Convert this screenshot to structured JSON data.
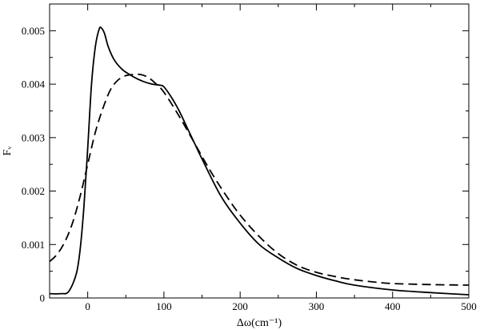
{
  "chart_data": {
    "type": "line",
    "title": "",
    "xlabel": "Δω(cm⁻¹)",
    "ylabel": "Fᵥ",
    "xlim": [
      -50,
      500
    ],
    "ylim": [
      0,
      0.0055
    ],
    "x_ticks": [
      0,
      100,
      200,
      300,
      400,
      500
    ],
    "x_tick_labels": [
      "0",
      "100",
      "200",
      "300",
      "400",
      "500"
    ],
    "y_ticks": [
      0,
      0.001,
      0.002,
      0.003,
      0.004,
      0.005
    ],
    "y_tick_labels": [
      "0",
      "0.001",
      "0.002",
      "0.003",
      "0.004",
      "0.005"
    ],
    "grid": false,
    "legend": "none",
    "series": [
      {
        "style": "solid",
        "color": "#000000",
        "x": [
          -50,
          -35,
          -25,
          -15,
          -10,
          -5,
          0,
          5,
          10,
          15,
          18,
          22,
          27,
          35,
          45,
          55,
          65,
          75,
          85,
          95,
          100,
          110,
          120,
          130,
          140,
          150,
          175,
          200,
          225,
          250,
          275,
          300,
          325,
          350,
          400,
          450,
          500
        ],
        "y": [
          8e-05,
          8e-05,
          0.00012,
          0.00045,
          0.0009,
          0.0017,
          0.0028,
          0.004,
          0.0047,
          0.00503,
          0.00505,
          0.00495,
          0.0047,
          0.00445,
          0.00428,
          0.00418,
          0.0041,
          0.00404,
          0.004,
          0.00398,
          0.00395,
          0.00375,
          0.0035,
          0.0032,
          0.0029,
          0.0026,
          0.0019,
          0.0014,
          0.001,
          0.00075,
          0.00055,
          0.00042,
          0.00032,
          0.00024,
          0.00015,
          0.0001,
          6e-05
        ]
      },
      {
        "style": "dashed",
        "color": "#000000",
        "x": [
          -50,
          -40,
          -30,
          -20,
          -10,
          0,
          10,
          20,
          30,
          40,
          50,
          60,
          70,
          80,
          90,
          100,
          120,
          140,
          160,
          180,
          200,
          225,
          250,
          275,
          300,
          325,
          350,
          375,
          400,
          450,
          500
        ],
        "y": [
          0.00068,
          0.00082,
          0.00105,
          0.0014,
          0.0019,
          0.0025,
          0.0031,
          0.00355,
          0.0039,
          0.00408,
          0.00416,
          0.00418,
          0.00418,
          0.00412,
          0.004,
          0.00385,
          0.0034,
          0.0029,
          0.0024,
          0.00195,
          0.00155,
          0.00115,
          0.00083,
          0.00061,
          0.00048,
          0.0004,
          0.00034,
          0.0003,
          0.00027,
          0.00025,
          0.00024
        ]
      }
    ]
  }
}
